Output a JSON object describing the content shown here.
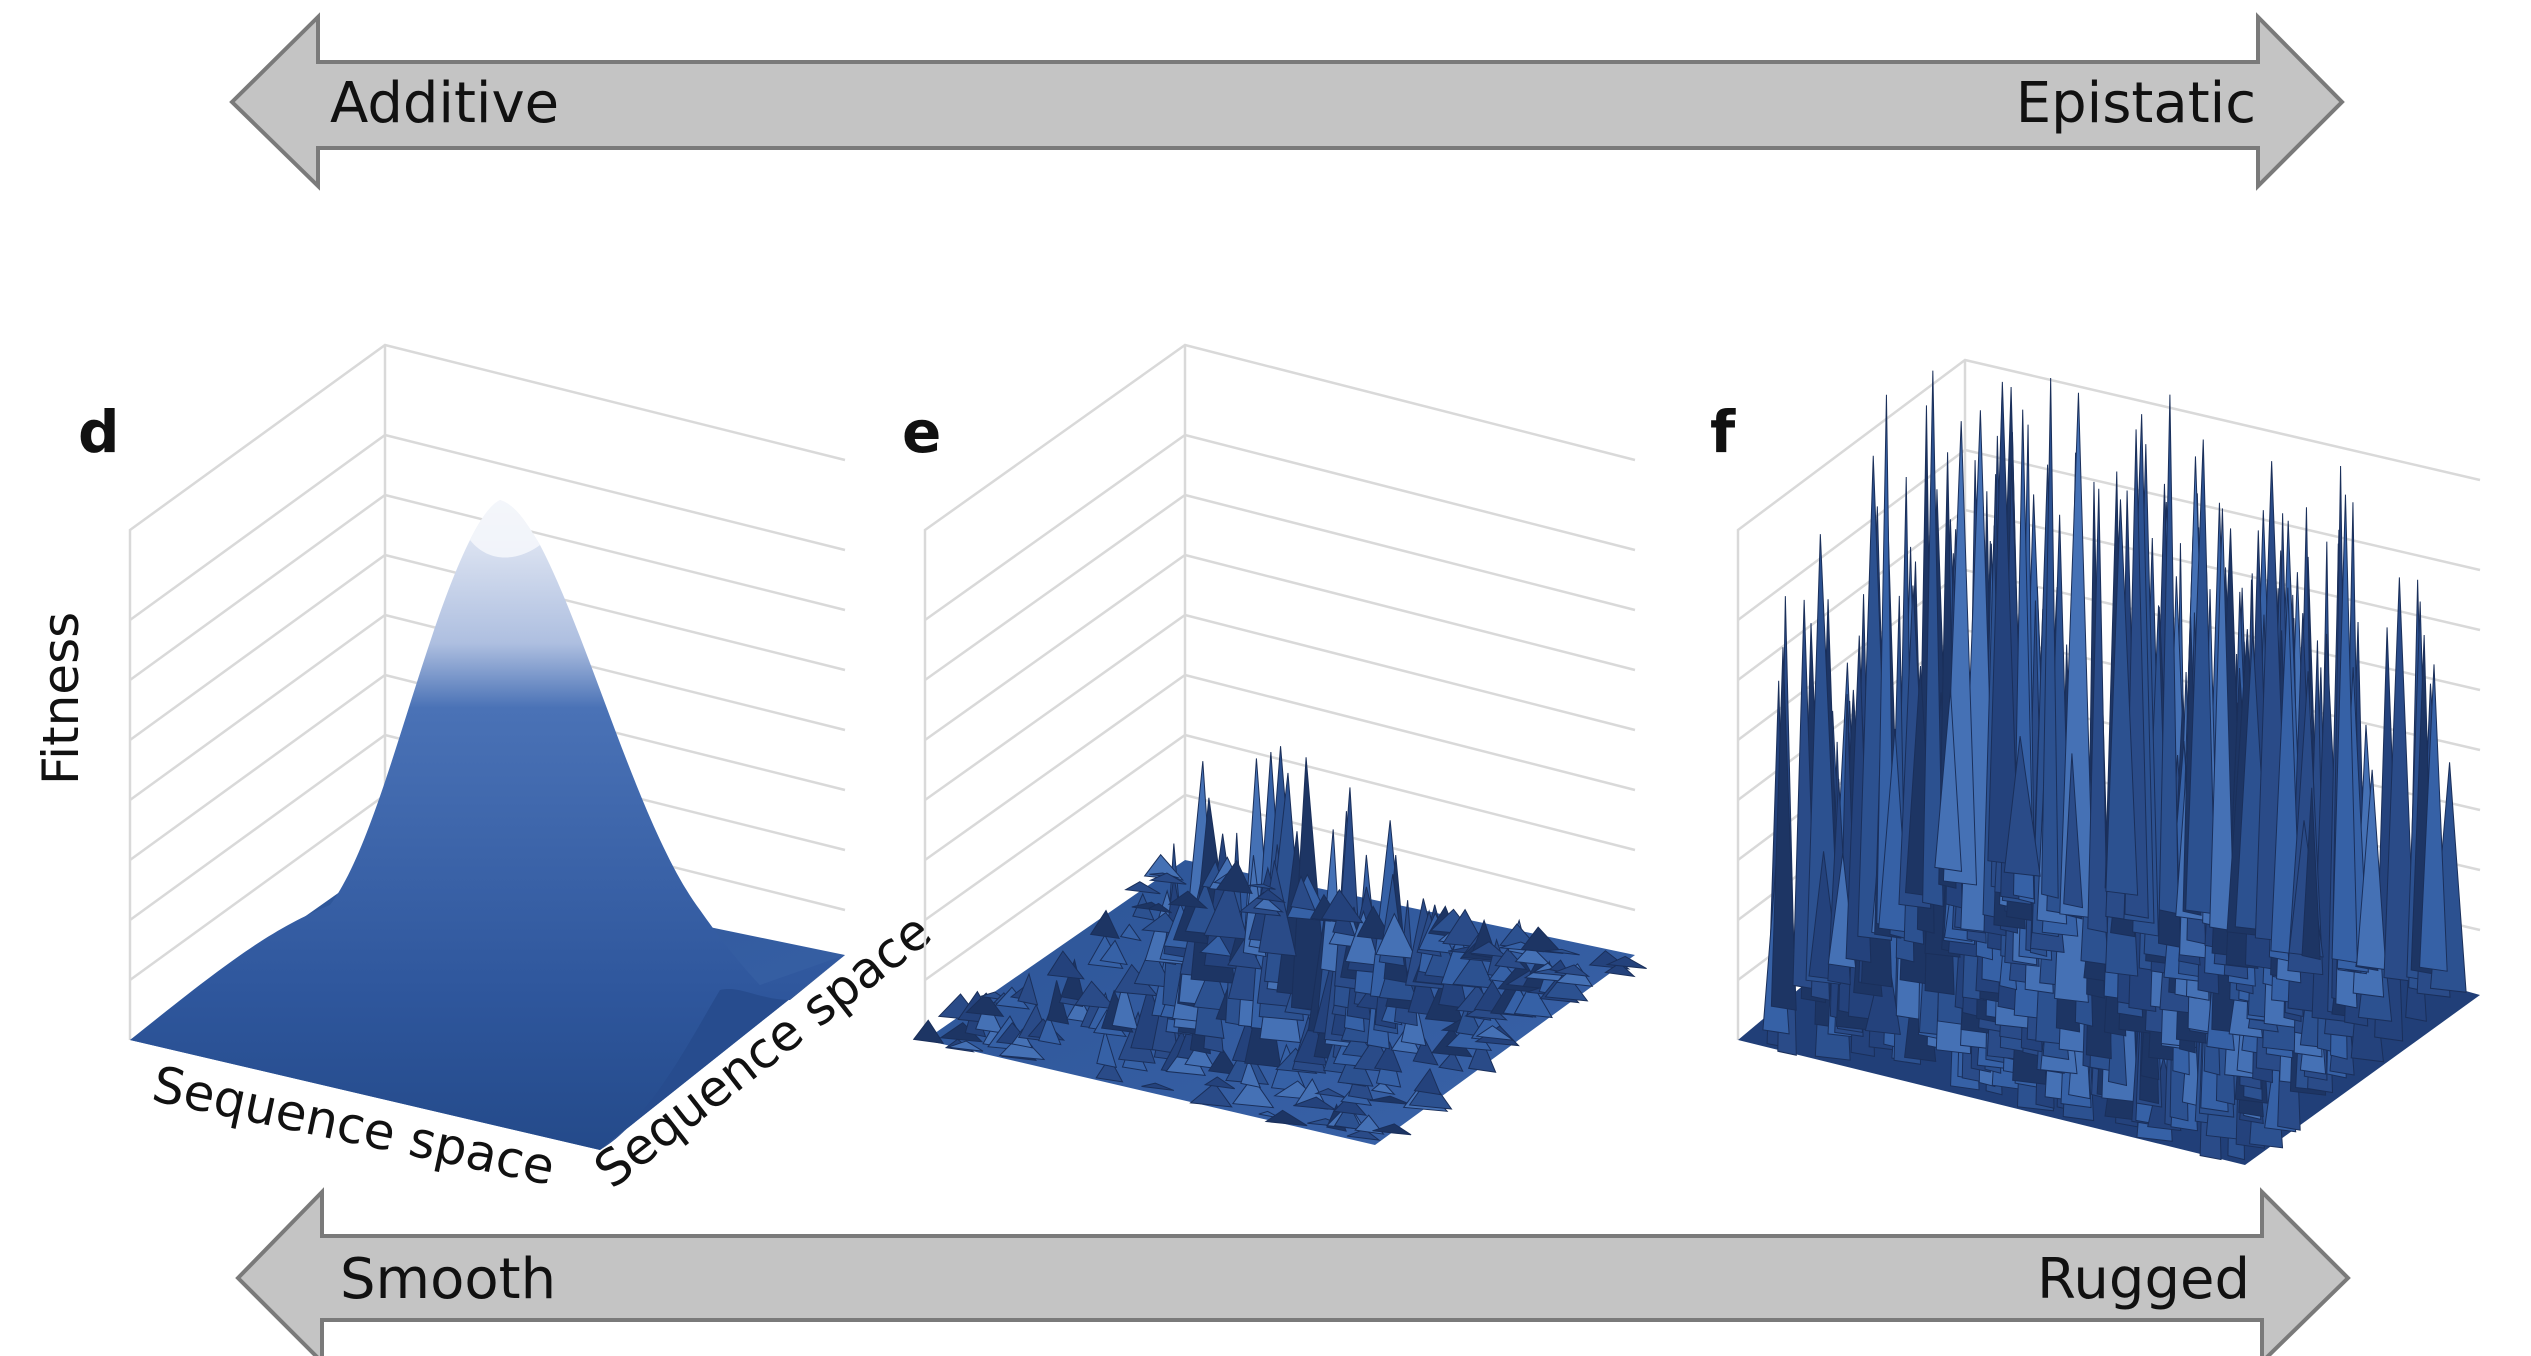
{
  "top_arrow": {
    "left_label": "Additive",
    "right_label": "Epistatic"
  },
  "bottom_arrow": {
    "left_label": "Smooth",
    "right_label": "Rugged"
  },
  "panels": [
    {
      "letter": "d",
      "kind": "smooth"
    },
    {
      "letter": "e",
      "kind": "intermediate"
    },
    {
      "letter": "f",
      "kind": "rugged"
    }
  ],
  "axes": {
    "fitness_label": "Fitness",
    "sequence_label_1": "Sequence space",
    "sequence_label_2": "Sequence space"
  },
  "colors": {
    "arrow_fill": "#c4c4c4",
    "arrow_stroke": "#7a7a7a",
    "surface_dark": "#1d3564",
    "surface_mid": "#3b63a8",
    "surface_light": "#9fb6df",
    "peak_highlight": "#e9edf6",
    "gridline": "#d9d9d9"
  }
}
